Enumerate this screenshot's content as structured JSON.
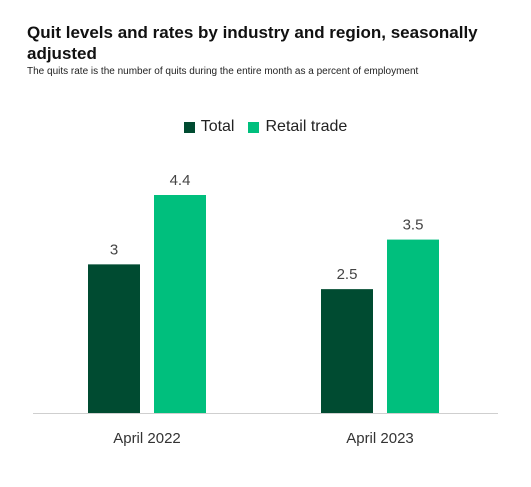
{
  "chart_data": {
    "type": "bar",
    "title": "Quit levels and rates by industry and region, seasonally adjusted",
    "subtitle": "The quits rate is the number of quits during the entire month as a percent of employment",
    "categories": [
      "April 2022",
      "April 2023"
    ],
    "series": [
      {
        "name": "Total",
        "values": [
          3,
          2.5
        ],
        "color": "#004b31"
      },
      {
        "name": "Retail trade",
        "values": [
          4.4,
          3.5
        ],
        "color": "#00bf7d"
      }
    ],
    "ylim": [
      0,
      4.4
    ],
    "legend": "top-center",
    "grid": false,
    "data_labels": true
  }
}
